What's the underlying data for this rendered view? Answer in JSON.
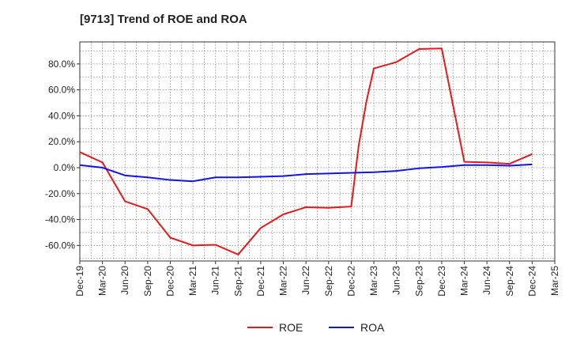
{
  "chart_data": {
    "type": "line",
    "title": "[9713]  Trend of ROE and ROA",
    "xlabel": "",
    "ylabel": "",
    "x": [
      "Dec-19",
      "Mar-20",
      "Jun-20",
      "Sep-20",
      "Dec-20",
      "Mar-21",
      "Jun-21",
      "Sep-21",
      "Dec-21",
      "Mar-22",
      "Jun-22",
      "Sep-22",
      "Dec-22",
      "Mar-23",
      "Jun-23",
      "Sep-23",
      "Dec-23",
      "Mar-24",
      "Jun-24",
      "Sep-24",
      "Dec-24",
      "Mar-25"
    ],
    "ylim": [
      -72,
      97
    ],
    "yticks": [
      -60,
      -40,
      -20,
      0,
      20,
      40,
      60,
      80
    ],
    "ytick_labels": [
      "-60.0%",
      "-40.0%",
      "-20.0%",
      "0.0%",
      "20.0%",
      "40.0%",
      "60.0%",
      "80.0%"
    ],
    "grid": true,
    "legend_position": "bottom-center",
    "series": [
      {
        "name": "ROE",
        "color": "#e41a1c",
        "points": [
          {
            "x": 0,
            "y": 12.0
          },
          {
            "x": 1,
            "y": 4.0
          },
          {
            "x": 2,
            "y": -26.0
          },
          {
            "x": 3,
            "y": -32.0
          },
          {
            "x": 4,
            "y": -54.0
          },
          {
            "x": 5,
            "y": -60.0
          },
          {
            "x": 6,
            "y": -59.5
          },
          {
            "x": 7,
            "y": -67.0
          },
          {
            "x": 8,
            "y": -46.5
          },
          {
            "x": 9,
            "y": -36.0
          },
          {
            "x": 10,
            "y": -30.5
          },
          {
            "x": 11,
            "y": -31.0
          },
          {
            "x": 12,
            "y": -30.0
          },
          {
            "x": 12.33,
            "y": 17.0
          },
          {
            "x": 12.67,
            "y": 51.0
          },
          {
            "x": 13,
            "y": 76.5
          },
          {
            "x": 14,
            "y": 81.5
          },
          {
            "x": 15,
            "y": 91.5
          },
          {
            "x": 16,
            "y": 92.0
          },
          {
            "x": 17,
            "y": 4.5
          },
          {
            "x": 18,
            "y": 4.0
          },
          {
            "x": 19,
            "y": 3.0
          },
          {
            "x": 20,
            "y": 10.5
          }
        ]
      },
      {
        "name": "ROA",
        "color": "#1414e0",
        "points": [
          {
            "x": 0,
            "y": 2.0
          },
          {
            "x": 1,
            "y": 0.0
          },
          {
            "x": 2,
            "y": -6.0
          },
          {
            "x": 3,
            "y": -7.5
          },
          {
            "x": 4,
            "y": -9.5
          },
          {
            "x": 5,
            "y": -10.5
          },
          {
            "x": 6,
            "y": -7.5
          },
          {
            "x": 7,
            "y": -7.5
          },
          {
            "x": 8,
            "y": -7.0
          },
          {
            "x": 9,
            "y": -6.5
          },
          {
            "x": 10,
            "y": -5.0
          },
          {
            "x": 11,
            "y": -4.5
          },
          {
            "x": 12,
            "y": -4.0
          },
          {
            "x": 13,
            "y": -3.5
          },
          {
            "x": 14,
            "y": -2.5
          },
          {
            "x": 15,
            "y": -0.5
          },
          {
            "x": 16,
            "y": 0.5
          },
          {
            "x": 17,
            "y": 2.0
          },
          {
            "x": 18,
            "y": 2.0
          },
          {
            "x": 19,
            "y": 1.5
          },
          {
            "x": 20,
            "y": 2.5
          }
        ]
      }
    ]
  }
}
